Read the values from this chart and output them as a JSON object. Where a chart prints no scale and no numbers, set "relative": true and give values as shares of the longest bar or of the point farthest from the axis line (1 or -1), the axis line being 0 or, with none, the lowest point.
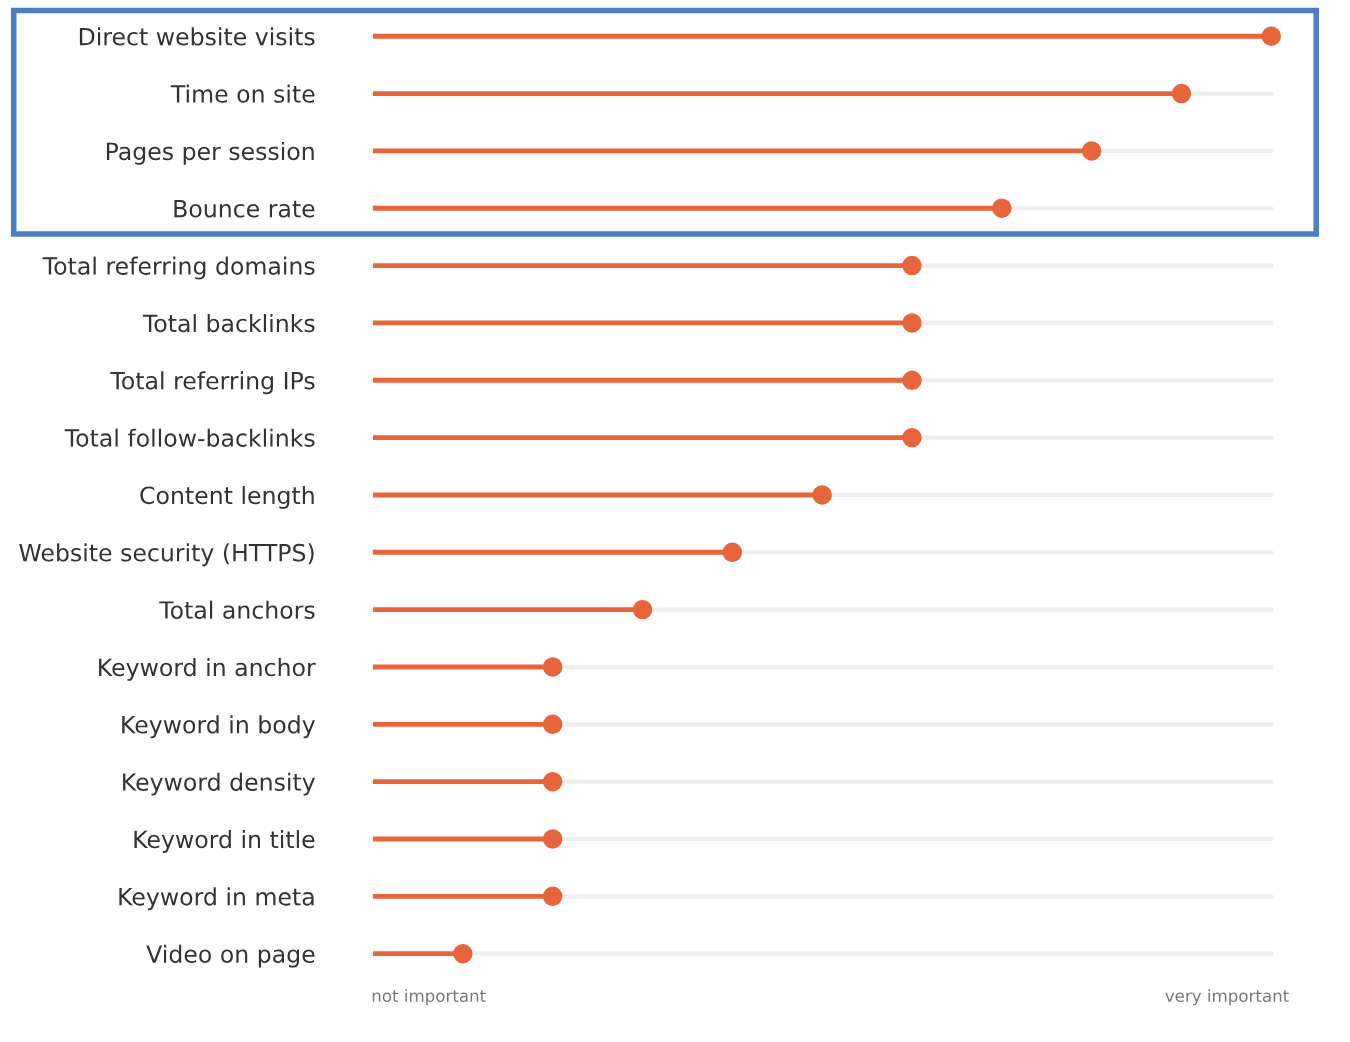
{
  "chart_data": {
    "type": "lollipop",
    "orientation": "horizontal",
    "relative": true,
    "color": "#e8643a",
    "grid": "y",
    "categories": [
      "Direct website visits",
      "Time on site",
      "Pages per session",
      "Bounce rate",
      "Total referring domains",
      "Total backlinks",
      "Total referring IPs",
      "Total follow-backlinks",
      "Content length",
      "Website security (HTTPS)",
      "Total anchors",
      "Keyword in anchor",
      "Keyword in body",
      "Keyword density",
      "Keyword in title",
      "Keyword in meta",
      "Video on page"
    ],
    "values": [
      1,
      0.9,
      0.8,
      0.7,
      0.6,
      0.6,
      0.6,
      0.6,
      0.5,
      0.4,
      0.3,
      0.2,
      0.2,
      0.2,
      0.2,
      0.2,
      0.1
    ],
    "marker": "circle",
    "annotations": [
      "not important",
      "very important"
    ]
  }
}
